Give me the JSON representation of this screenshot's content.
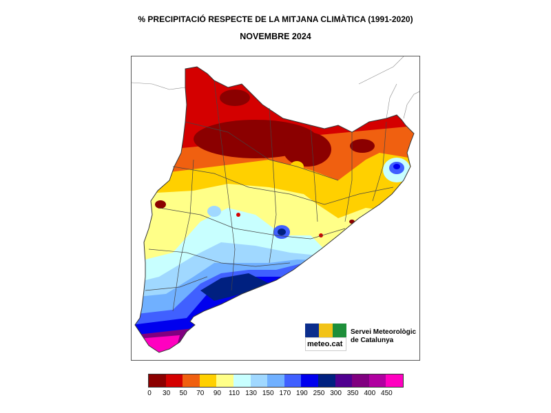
{
  "title": "% PRECIPITACIÓ RESPECTE DE LA MITJANA CLIMÀTICA (1991-2020)",
  "subtitle": "NOVEMBRE 2024",
  "logo": {
    "wordmark": "meteo.cat",
    "institution_line1": "Servei Meteorològic",
    "institution_line2": "de Catalunya",
    "box_colors": [
      "#0b2d8c",
      "#f2c318",
      "#1e8f3a"
    ]
  },
  "legend": {
    "colors": [
      "#8b0000",
      "#d40000",
      "#f06010",
      "#ffd000",
      "#ffff88",
      "#c8ffff",
      "#a0d8ff",
      "#70b0ff",
      "#4060ff",
      "#0000ee",
      "#002080",
      "#500090",
      "#800080",
      "#b000a0",
      "#ff00c0"
    ],
    "labels": [
      "0",
      "30",
      "50",
      "70",
      "90",
      "110",
      "130",
      "150",
      "170",
      "190",
      "250",
      "300",
      "350",
      "400",
      "450"
    ]
  }
}
